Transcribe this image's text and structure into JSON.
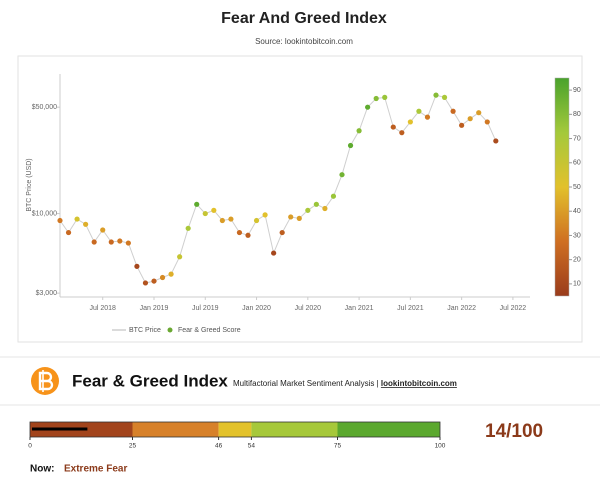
{
  "chart_data": {
    "type": "scatter",
    "title": "Fear And Greed Index",
    "subtitle": "Source: lookintobitcoin.com",
    "y_label": "BTC Price (USD)",
    "log_y": true,
    "x": [
      "2018-02",
      "2018-03",
      "2018-04",
      "2018-05",
      "2018-06",
      "2018-07",
      "2018-08",
      "2018-09",
      "2018-10",
      "2018-11",
      "2018-12",
      "2019-01",
      "2019-02",
      "2019-03",
      "2019-04",
      "2019-05",
      "2019-06",
      "2019-07",
      "2019-08",
      "2019-09",
      "2019-10",
      "2019-11",
      "2019-12",
      "2020-01",
      "2020-02",
      "2020-03",
      "2020-04",
      "2020-05",
      "2020-06",
      "2020-07",
      "2020-08",
      "2020-09",
      "2020-10",
      "2020-11",
      "2020-12",
      "2021-01",
      "2021-02",
      "2021-03",
      "2021-04",
      "2021-05",
      "2021-06",
      "2021-07",
      "2021-08",
      "2021-09",
      "2021-10",
      "2021-11",
      "2021-12",
      "2022-01",
      "2022-02",
      "2022-03",
      "2022-04",
      "2022-05"
    ],
    "series": [
      {
        "name": "BTC Price",
        "color": "#cfcfcf",
        "values": [
          9000,
          7500,
          9200,
          8500,
          6500,
          7800,
          6500,
          6600,
          6400,
          4500,
          3500,
          3600,
          3800,
          4000,
          5200,
          8000,
          11500,
          10000,
          10500,
          9000,
          9200,
          7500,
          7200,
          9000,
          9800,
          5500,
          7500,
          9500,
          9300,
          10500,
          11500,
          10800,
          13000,
          18000,
          28000,
          35000,
          50000,
          57000,
          58000,
          37000,
          34000,
          40000,
          47000,
          43000,
          60000,
          58000,
          47000,
          38000,
          42000,
          46000,
          40000,
          30000
        ]
      },
      {
        "name": "Fear & Greed Score",
        "color": "#6aa832",
        "values": [
          30,
          25,
          55,
          45,
          25,
          40,
          25,
          30,
          30,
          10,
          15,
          20,
          35,
          45,
          60,
          70,
          90,
          60,
          50,
          40,
          40,
          25,
          20,
          55,
          50,
          10,
          20,
          40,
          40,
          70,
          75,
          45,
          75,
          85,
          90,
          80,
          90,
          80,
          75,
          20,
          20,
          50,
          70,
          30,
          80,
          70,
          25,
          20,
          40,
          40,
          30,
          12
        ]
      }
    ],
    "xlim": [
      "2018-02",
      "2022-09"
    ],
    "xticks": [
      {
        "value": "2018-07",
        "label": "Jul 2018"
      },
      {
        "value": "2019-01",
        "label": "Jan 2019"
      },
      {
        "value": "2019-07",
        "label": "Jul 2019"
      },
      {
        "value": "2020-01",
        "label": "Jan 2020"
      },
      {
        "value": "2020-07",
        "label": "Jul 2020"
      },
      {
        "value": "2021-01",
        "label": "Jan 2021"
      },
      {
        "value": "2021-07",
        "label": "Jul 2021"
      },
      {
        "value": "2022-01",
        "label": "Jan 2022"
      },
      {
        "value": "2022-07",
        "label": "Jul 2022"
      }
    ],
    "ylim": [
      2830,
      82600
    ],
    "yticks": [
      {
        "value": 3000,
        "label": "$3,000"
      },
      {
        "value": 10000,
        "label": "$10,000"
      },
      {
        "value": 50000,
        "label": "$50,000"
      }
    ],
    "colorscale": [
      "#9a3c1c",
      "#cf6f22",
      "#e2c12c",
      "#a4c93b",
      "#4aa22c"
    ],
    "clim": [
      5,
      95
    ],
    "cticks": [
      10,
      20,
      30,
      40,
      50,
      60,
      70,
      80,
      90
    ],
    "legend": "bottom"
  },
  "panel": {
    "title": "Fear & Greed Index",
    "tagline": "Multifactorial Market Sentiment Analysis | ",
    "link": "lookintobitcoin.com",
    "gauge": {
      "value": 14,
      "value_label": "14/100",
      "ticks": [
        0,
        25,
        46,
        54,
        75,
        100
      ],
      "band_colors": [
        "#a2441c",
        "#d7812a",
        "#e3c22b",
        "#a6c83a",
        "#5ba82e"
      ],
      "value_color": "#8b3a1a"
    },
    "now_label": "Now:",
    "now_value": "Extreme Fear"
  }
}
